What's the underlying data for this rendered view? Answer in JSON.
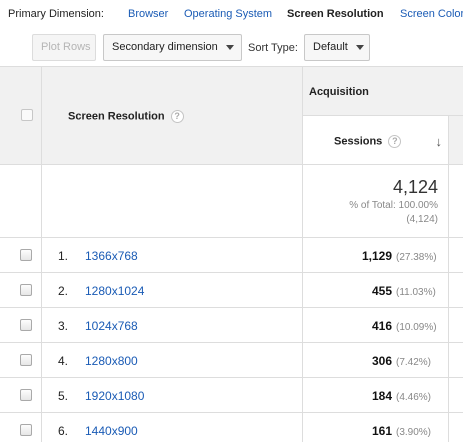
{
  "dimension_bar": {
    "label": "Primary Dimension:",
    "options": [
      {
        "label": "Browser",
        "active": false
      },
      {
        "label": "Operating System",
        "active": false
      },
      {
        "label": "Screen Resolution",
        "active": true
      },
      {
        "label": "Screen Colors",
        "active": false
      }
    ]
  },
  "toolbar": {
    "plot_rows": "Plot Rows",
    "secondary_dimension": "Secondary dimension",
    "sort_type_label": "Sort Type:",
    "sort_type_value": "Default"
  },
  "table": {
    "dimension_header": "Screen Resolution",
    "group_header": "Acquisition",
    "metric_header": "Sessions",
    "help_glyph": "?",
    "sort_glyph": "↓",
    "totals": {
      "value": "4,124",
      "pct_line": "% of Total: 100.00%",
      "abs_line": "(4,124)"
    },
    "rows": [
      {
        "index": "1.",
        "resolution": "1366x768",
        "sessions": "1,129",
        "pct": "(27.38%)"
      },
      {
        "index": "2.",
        "resolution": "1280x1024",
        "sessions": "455",
        "pct": "(11.03%)"
      },
      {
        "index": "3.",
        "resolution": "1024x768",
        "sessions": "416",
        "pct": "(10.09%)"
      },
      {
        "index": "4.",
        "resolution": "1280x800",
        "sessions": "306",
        "pct": "(7.42%)"
      },
      {
        "index": "5.",
        "resolution": "1920x1080",
        "sessions": "184",
        "pct": "(4.46%)"
      },
      {
        "index": "6.",
        "resolution": "1440x900",
        "sessions": "161",
        "pct": "(3.90%)"
      }
    ]
  }
}
